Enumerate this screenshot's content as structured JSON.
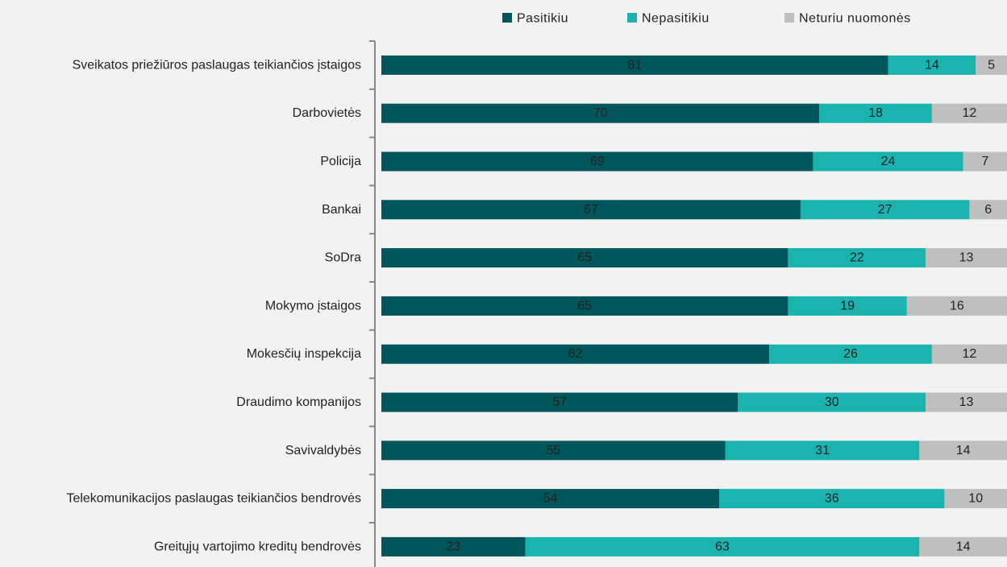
{
  "chart_data": {
    "type": "stacked-barh",
    "categories": [
      "Sveikatos priežiūros paslaugas teikiančios įstaigos",
      "Darbovietės",
      "Policija",
      "Bankai",
      "SoDra",
      "Mokymo įstaigos",
      "Mokesčių inspekcija",
      "Draudimo kompanijos",
      "Savivaldybės",
      "Telekomunikacijos paslaugas teikiančios bendrovės",
      "Greitųjų vartojimo kreditų bendrovės"
    ],
    "series": [
      {
        "name": "Pasitikiu",
        "color": "#00565a",
        "values": [
          81,
          70,
          69,
          67,
          65,
          65,
          62,
          57,
          55,
          54,
          23
        ]
      },
      {
        "name": "Nepasitikiu",
        "color": "#1ab3ae",
        "values": [
          14,
          18,
          24,
          27,
          22,
          19,
          26,
          30,
          31,
          36,
          63
        ]
      },
      {
        "name": "Neturiu nuomonės",
        "color": "#bfbfbf",
        "values": [
          5,
          12,
          7,
          6,
          13,
          16,
          12,
          13,
          14,
          10,
          14
        ]
      }
    ],
    "xlim": [
      0,
      100
    ],
    "legend": "top"
  }
}
